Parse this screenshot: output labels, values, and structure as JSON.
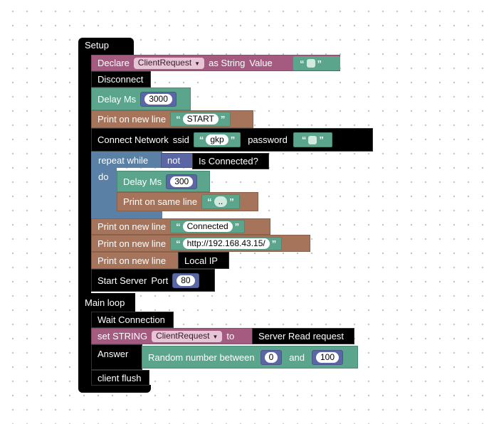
{
  "setup": {
    "title": "Setup",
    "declare": {
      "label": "Declare",
      "var": "ClientRequest",
      "as_type": "as String",
      "value_label": "Value",
      "value": ""
    },
    "disconnect": "Disconnect",
    "delay1": {
      "label": "Delay Ms",
      "value": "3000"
    },
    "print_start": {
      "label": "Print on new line",
      "value": "START"
    },
    "connect": {
      "label": "Connect Network",
      "ssid_label": "ssid",
      "ssid": "gkp",
      "password_label": "password",
      "password": ""
    },
    "repeat": {
      "label": "repeat while",
      "not_label": "not",
      "cond": "Is Connected?",
      "do_label": "do"
    },
    "delay2": {
      "label": "Delay Ms",
      "value": "300"
    },
    "print_same": {
      "label": "Print on same line",
      "value": ".."
    },
    "print_connected": {
      "label": "Print on new line",
      "value": "Connected"
    },
    "print_url": {
      "label": "Print on new line",
      "value": "http://192.168.43.15/"
    },
    "print_ip": {
      "label": "Print on new line",
      "value": "Local IP"
    },
    "server": {
      "label": "Start Server",
      "port_label": "Port",
      "port": "80"
    }
  },
  "loop": {
    "title": "Main loop",
    "wait": "Wait Connection",
    "set": {
      "label": "set STRING",
      "var": "ClientRequest",
      "to_label": "to",
      "value": "Server Read request"
    },
    "answer": {
      "label": "Answer",
      "random_label": "Random number between",
      "min": "0",
      "and_label": "and",
      "max": "100"
    },
    "flush": "client flush"
  }
}
